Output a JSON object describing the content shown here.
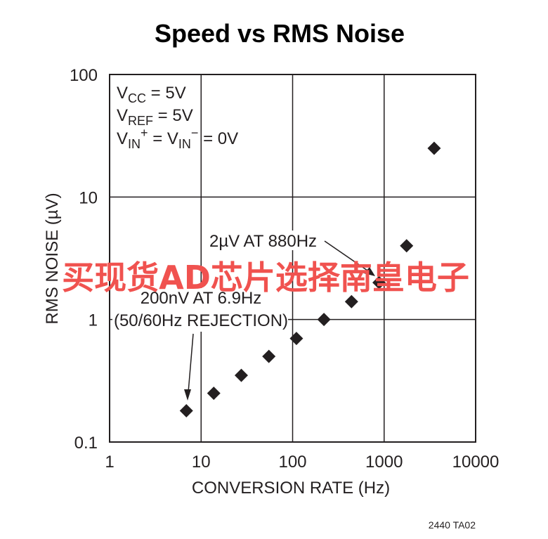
{
  "chart_data": {
    "type": "scatter",
    "title": "Speed vs RMS Noise",
    "xlabel": "CONVERSION RATE (Hz)",
    "ylabel": "RMS NOISE (µV)",
    "x_scale": "log",
    "y_scale": "log",
    "xlim": [
      1,
      10000
    ],
    "ylim": [
      0.1,
      100
    ],
    "grid": true,
    "x_ticks": [
      "1",
      "10",
      "100",
      "1000",
      "10000"
    ],
    "y_ticks": [
      "0.1",
      "1",
      "10",
      "100"
    ],
    "series": [
      {
        "marker": "diamond",
        "color": "#231f20",
        "x": [
          6.9,
          13.75,
          27.5,
          55,
          110,
          220,
          440,
          880,
          1760,
          3520
        ],
        "y": [
          0.18,
          0.25,
          0.35,
          0.5,
          0.7,
          1.0,
          1.4,
          2.0,
          4.0,
          25
        ]
      }
    ],
    "conditions": {
      "vcc": {
        "main": "V",
        "sub": "CC",
        "rest": " = 5V"
      },
      "vref": {
        "main": "V",
        "sub": "REF",
        "rest": " = 5V"
      },
      "vin": {
        "m1": "V",
        "s1": "IN",
        "p1": "+",
        "eq": " = V",
        "s2": "IN",
        "p2": "−",
        "rest": " = 0V"
      }
    },
    "annotations": {
      "a1": "2µV AT 880Hz",
      "a2_line1": "200nV AT 6.9Hz",
      "a2_line2": "(50/60Hz REJECTION)"
    }
  },
  "watermark": "买现货AD芯片选择南皇电子",
  "figure_code": "2440 TA02"
}
